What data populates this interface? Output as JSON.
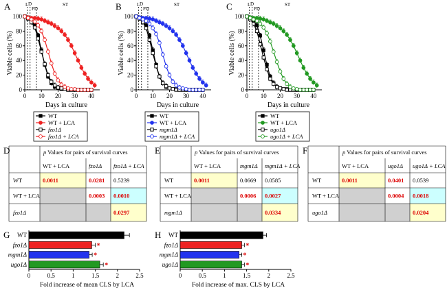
{
  "colors": {
    "wt": "#000000",
    "red": "#ee2222",
    "blue": "#2233ee",
    "green": "#229922",
    "yellow": "#ffffcc",
    "cyan": "#ccffff",
    "gray": "#d0d0d0",
    "sig": "#dd0000"
  },
  "phases": [
    "L",
    "D",
    "PD",
    "ST"
  ],
  "chart_data": [
    {
      "type": "line",
      "panel": "A",
      "xlabel": "Days in culture",
      "ylabel": "Viable cells (%)",
      "xlim": [
        0,
        45
      ],
      "ylim": [
        0,
        100
      ],
      "xticks": [
        0,
        10,
        20,
        30,
        40
      ],
      "yticks": [
        0,
        20,
        40,
        60,
        80,
        100
      ],
      "legend": [
        "WT",
        "WT + LCA",
        "fzo1Δ",
        "fzo1Δ + LCA"
      ],
      "series": [
        {
          "name": "WT",
          "color": "wt",
          "marker": "square",
          "filled": true,
          "x": [
            0,
            2,
            4,
            6,
            8,
            10,
            12,
            14,
            16,
            18,
            20,
            22,
            24,
            26,
            28,
            30,
            32,
            34,
            36,
            38,
            40
          ],
          "y": [
            100,
            98,
            94,
            88,
            74,
            54,
            34,
            18,
            9,
            4,
            2,
            1,
            1,
            0,
            0,
            0,
            0,
            0,
            0,
            0,
            0
          ]
        },
        {
          "name": "WT + LCA",
          "color": "red",
          "marker": "circle",
          "filled": true,
          "x": [
            0,
            2,
            4,
            6,
            8,
            10,
            12,
            14,
            16,
            18,
            20,
            22,
            24,
            26,
            28,
            30,
            32,
            34,
            36,
            38,
            40,
            42
          ],
          "y": [
            100,
            99,
            98,
            98,
            97,
            96,
            94,
            92,
            90,
            87,
            84,
            80,
            75,
            68,
            60,
            50,
            40,
            30,
            22,
            15,
            10,
            6
          ]
        },
        {
          "name": "fzo1Δ",
          "color": "wt",
          "marker": "square",
          "filled": false,
          "x": [
            0,
            2,
            4,
            6,
            8,
            10,
            12,
            14,
            16,
            18,
            20,
            22,
            24,
            26,
            28,
            30,
            32,
            34,
            36,
            38,
            40
          ],
          "y": [
            100,
            97,
            92,
            85,
            70,
            52,
            35,
            20,
            11,
            6,
            3,
            2,
            1,
            0,
            0,
            0,
            0,
            0,
            0,
            0,
            0
          ]
        },
        {
          "name": "fzo1Δ + LCA",
          "color": "red",
          "marker": "circle",
          "filled": false,
          "x": [
            0,
            2,
            4,
            6,
            8,
            10,
            12,
            14,
            16,
            18,
            20,
            22,
            24,
            26,
            28,
            30,
            32,
            34,
            36,
            38,
            40
          ],
          "y": [
            100,
            98,
            96,
            93,
            88,
            80,
            68,
            52,
            36,
            22,
            13,
            7,
            4,
            2,
            1,
            1,
            0,
            0,
            0,
            0,
            0
          ]
        }
      ]
    },
    {
      "type": "line",
      "panel": "B",
      "xlabel": "Days in culture",
      "ylabel": "Viable cells (%)",
      "xlim": [
        0,
        45
      ],
      "ylim": [
        0,
        100
      ],
      "xticks": [
        0,
        10,
        20,
        30,
        40
      ],
      "yticks": [
        0,
        20,
        40,
        60,
        80,
        100
      ],
      "legend": [
        "WT",
        "WT + LCA",
        "mgm1Δ",
        "mgm1Δ + LCA"
      ],
      "series": [
        {
          "name": "WT",
          "color": "wt",
          "marker": "square",
          "filled": true,
          "x": [
            0,
            2,
            4,
            6,
            8,
            10,
            12,
            14,
            16,
            18,
            20,
            22,
            24,
            26,
            28,
            30,
            32,
            34,
            36,
            38,
            40
          ],
          "y": [
            100,
            98,
            94,
            88,
            74,
            54,
            34,
            18,
            9,
            4,
            2,
            1,
            1,
            0,
            0,
            0,
            0,
            0,
            0,
            0,
            0
          ]
        },
        {
          "name": "WT + LCA",
          "color": "blue",
          "marker": "circle",
          "filled": true,
          "x": [
            0,
            2,
            4,
            6,
            8,
            10,
            12,
            14,
            16,
            18,
            20,
            22,
            24,
            26,
            28,
            30,
            32,
            34,
            36,
            38,
            40,
            42
          ],
          "y": [
            100,
            99,
            98,
            98,
            97,
            96,
            94,
            92,
            90,
            87,
            84,
            80,
            75,
            68,
            60,
            50,
            40,
            30,
            22,
            15,
            10,
            6
          ]
        },
        {
          "name": "mgm1Δ",
          "color": "wt",
          "marker": "square",
          "filled": false,
          "x": [
            0,
            2,
            4,
            6,
            8,
            10,
            12,
            14,
            16,
            18,
            20,
            22,
            24,
            26,
            28,
            30,
            32,
            34,
            36,
            38,
            40
          ],
          "y": [
            100,
            97,
            92,
            84,
            68,
            50,
            32,
            18,
            9,
            5,
            2,
            1,
            0,
            0,
            0,
            0,
            0,
            0,
            0,
            0,
            0
          ]
        },
        {
          "name": "mgm1Δ + LCA",
          "color": "blue",
          "marker": "circle",
          "filled": false,
          "x": [
            0,
            2,
            4,
            6,
            8,
            10,
            12,
            14,
            16,
            18,
            20,
            22,
            24,
            26,
            28,
            30,
            32,
            34,
            36,
            38,
            40
          ],
          "y": [
            100,
            98,
            96,
            94,
            90,
            84,
            76,
            64,
            48,
            32,
            20,
            11,
            6,
            3,
            2,
            1,
            0,
            0,
            0,
            0,
            0
          ]
        }
      ]
    },
    {
      "type": "line",
      "panel": "C",
      "xlabel": "Days in culture",
      "ylabel": "Viable cells (%)",
      "xlim": [
        0,
        45
      ],
      "ylim": [
        0,
        100
      ],
      "xticks": [
        0,
        10,
        20,
        30,
        40
      ],
      "yticks": [
        0,
        20,
        40,
        60,
        80,
        100
      ],
      "legend": [
        "WT",
        "WT + LCA",
        "ugo1Δ",
        "ugo1Δ + LCA"
      ],
      "series": [
        {
          "name": "WT",
          "color": "wt",
          "marker": "square",
          "filled": true,
          "x": [
            0,
            2,
            4,
            6,
            8,
            10,
            12,
            14,
            16,
            18,
            20,
            22,
            24,
            26,
            28,
            30,
            32,
            34,
            36,
            38,
            40
          ],
          "y": [
            100,
            98,
            94,
            88,
            74,
            54,
            34,
            18,
            9,
            4,
            2,
            1,
            1,
            0,
            0,
            0,
            0,
            0,
            0,
            0,
            0
          ]
        },
        {
          "name": "WT + LCA",
          "color": "green",
          "marker": "circle",
          "filled": true,
          "x": [
            0,
            2,
            4,
            6,
            8,
            10,
            12,
            14,
            16,
            18,
            20,
            22,
            24,
            26,
            28,
            30,
            32,
            34,
            36,
            38,
            40,
            42
          ],
          "y": [
            100,
            99,
            98,
            98,
            97,
            96,
            94,
            92,
            90,
            87,
            84,
            80,
            75,
            68,
            60,
            50,
            40,
            30,
            22,
            15,
            10,
            6
          ]
        },
        {
          "name": "ugo1Δ",
          "color": "wt",
          "marker": "square",
          "filled": false,
          "x": [
            0,
            2,
            4,
            6,
            8,
            10,
            12,
            14,
            16,
            18,
            20,
            22,
            24,
            26,
            28,
            30,
            32,
            34,
            36,
            38,
            40
          ],
          "y": [
            100,
            96,
            90,
            80,
            62,
            44,
            28,
            15,
            8,
            4,
            2,
            1,
            0,
            0,
            0,
            0,
            0,
            0,
            0,
            0,
            0
          ]
        },
        {
          "name": "ugo1Δ + LCA",
          "color": "green",
          "marker": "circle",
          "filled": false,
          "x": [
            0,
            2,
            4,
            6,
            8,
            10,
            12,
            14,
            16,
            18,
            20,
            22,
            24,
            26,
            28,
            30,
            32,
            34,
            36,
            38,
            40
          ],
          "y": [
            100,
            98,
            96,
            94,
            90,
            85,
            77,
            66,
            52,
            38,
            25,
            15,
            8,
            4,
            2,
            1,
            0,
            0,
            0,
            0,
            0
          ]
        }
      ]
    },
    {
      "type": "table",
      "panel": "D",
      "title_p": "p",
      "title_rest": " Values for pairs of survival curves",
      "columns": [
        "WT + LCA",
        "fzo1Δ",
        "fzo1Δ + LCA"
      ],
      "rows": [
        {
          "label": "WT",
          "cells": [
            {
              "v": "0.0011",
              "bg": "yellow",
              "sig": true
            },
            {
              "v": "0.0281",
              "bg": "",
              "sig": true
            },
            {
              "v": "0.5239",
              "bg": "",
              "sig": false
            }
          ]
        },
        {
          "label": "WT + LCA",
          "cells": [
            {
              "v": "",
              "bg": "gray",
              "sig": false
            },
            {
              "v": "0.0003",
              "bg": "",
              "sig": true
            },
            {
              "v": "0.0010",
              "bg": "cyan",
              "sig": true
            }
          ]
        },
        {
          "label": "fzo1Δ",
          "cells": [
            {
              "v": "",
              "bg": "gray",
              "sig": false
            },
            {
              "v": "",
              "bg": "gray",
              "sig": false
            },
            {
              "v": "0.0297",
              "bg": "yellow",
              "sig": true
            }
          ]
        }
      ]
    },
    {
      "type": "table",
      "panel": "E",
      "title_p": "p",
      "title_rest": " Values for pairs of survival curves",
      "columns": [
        "WT + LCA",
        "mgm1Δ",
        "mgm1Δ + LCA"
      ],
      "rows": [
        {
          "label": "WT",
          "cells": [
            {
              "v": "0.0011",
              "bg": "yellow",
              "sig": true
            },
            {
              "v": "0.0669",
              "bg": "",
              "sig": false
            },
            {
              "v": "0.0585",
              "bg": "",
              "sig": false
            }
          ]
        },
        {
          "label": "WT + LCA",
          "cells": [
            {
              "v": "",
              "bg": "gray",
              "sig": false
            },
            {
              "v": "0.0006",
              "bg": "",
              "sig": true
            },
            {
              "v": "0.0027",
              "bg": "cyan",
              "sig": true
            }
          ]
        },
        {
          "label": "mgm1Δ",
          "cells": [
            {
              "v": "",
              "bg": "gray",
              "sig": false
            },
            {
              "v": "",
              "bg": "gray",
              "sig": false
            },
            {
              "v": "0.0334",
              "bg": "yellow",
              "sig": true
            }
          ]
        }
      ]
    },
    {
      "type": "table",
      "panel": "F",
      "title_p": "p",
      "title_rest": " Values for pairs of survival curves",
      "columns": [
        "WT + LCA",
        "ugo1Δ",
        "ugo1Δ + LCA"
      ],
      "rows": [
        {
          "label": "WT",
          "cells": [
            {
              "v": "0.0011",
              "bg": "yellow",
              "sig": true
            },
            {
              "v": "0.0401",
              "bg": "",
              "sig": true
            },
            {
              "v": "0.0539",
              "bg": "",
              "sig": false
            }
          ]
        },
        {
          "label": "WT + LCA",
          "cells": [
            {
              "v": "",
              "bg": "gray",
              "sig": false
            },
            {
              "v": "0.0004",
              "bg": "",
              "sig": true
            },
            {
              "v": "0.0018",
              "bg": "cyan",
              "sig": true
            }
          ]
        },
        {
          "label": "ugo1Δ",
          "cells": [
            {
              "v": "",
              "bg": "gray",
              "sig": false
            },
            {
              "v": "",
              "bg": "gray",
              "sig": false
            },
            {
              "v": "0.0204",
              "bg": "yellow",
              "sig": true
            }
          ]
        }
      ]
    },
    {
      "type": "bar",
      "panel": "G",
      "orientation": "horizontal",
      "xlabel": "Fold increase of mean CLS by LCA",
      "xlim": [
        0,
        2.5
      ],
      "xticks": [
        "0",
        "0.5",
        "1",
        "1.5",
        "2",
        "2.5"
      ],
      "categories": [
        "WT",
        "fzo1Δ",
        "mgm1Δ",
        "ugo1Δ"
      ],
      "values": [
        2.15,
        1.42,
        1.36,
        1.6
      ],
      "errors": [
        0.12,
        0.08,
        0.07,
        0.08
      ],
      "colors": [
        "wt",
        "red",
        "blue",
        "green"
      ],
      "significant": [
        false,
        true,
        true,
        true
      ],
      "star": "*"
    },
    {
      "type": "bar",
      "panel": "H",
      "orientation": "horizontal",
      "xlabel": "Fold increase of max. CLS by LCA",
      "xlim": [
        0,
        2.5
      ],
      "xticks": [
        "0",
        "0.5",
        "1",
        "1.5",
        "2",
        "2.5"
      ],
      "categories": [
        "WT",
        "fzo1Δ",
        "mgm1Δ",
        "ugo1Δ"
      ],
      "values": [
        1.87,
        1.39,
        1.33,
        1.39
      ],
      "errors": [
        0.08,
        0.06,
        0.06,
        0.06
      ],
      "colors": [
        "wt",
        "red",
        "blue",
        "green"
      ],
      "significant": [
        false,
        true,
        true,
        true
      ],
      "star": "*"
    }
  ]
}
